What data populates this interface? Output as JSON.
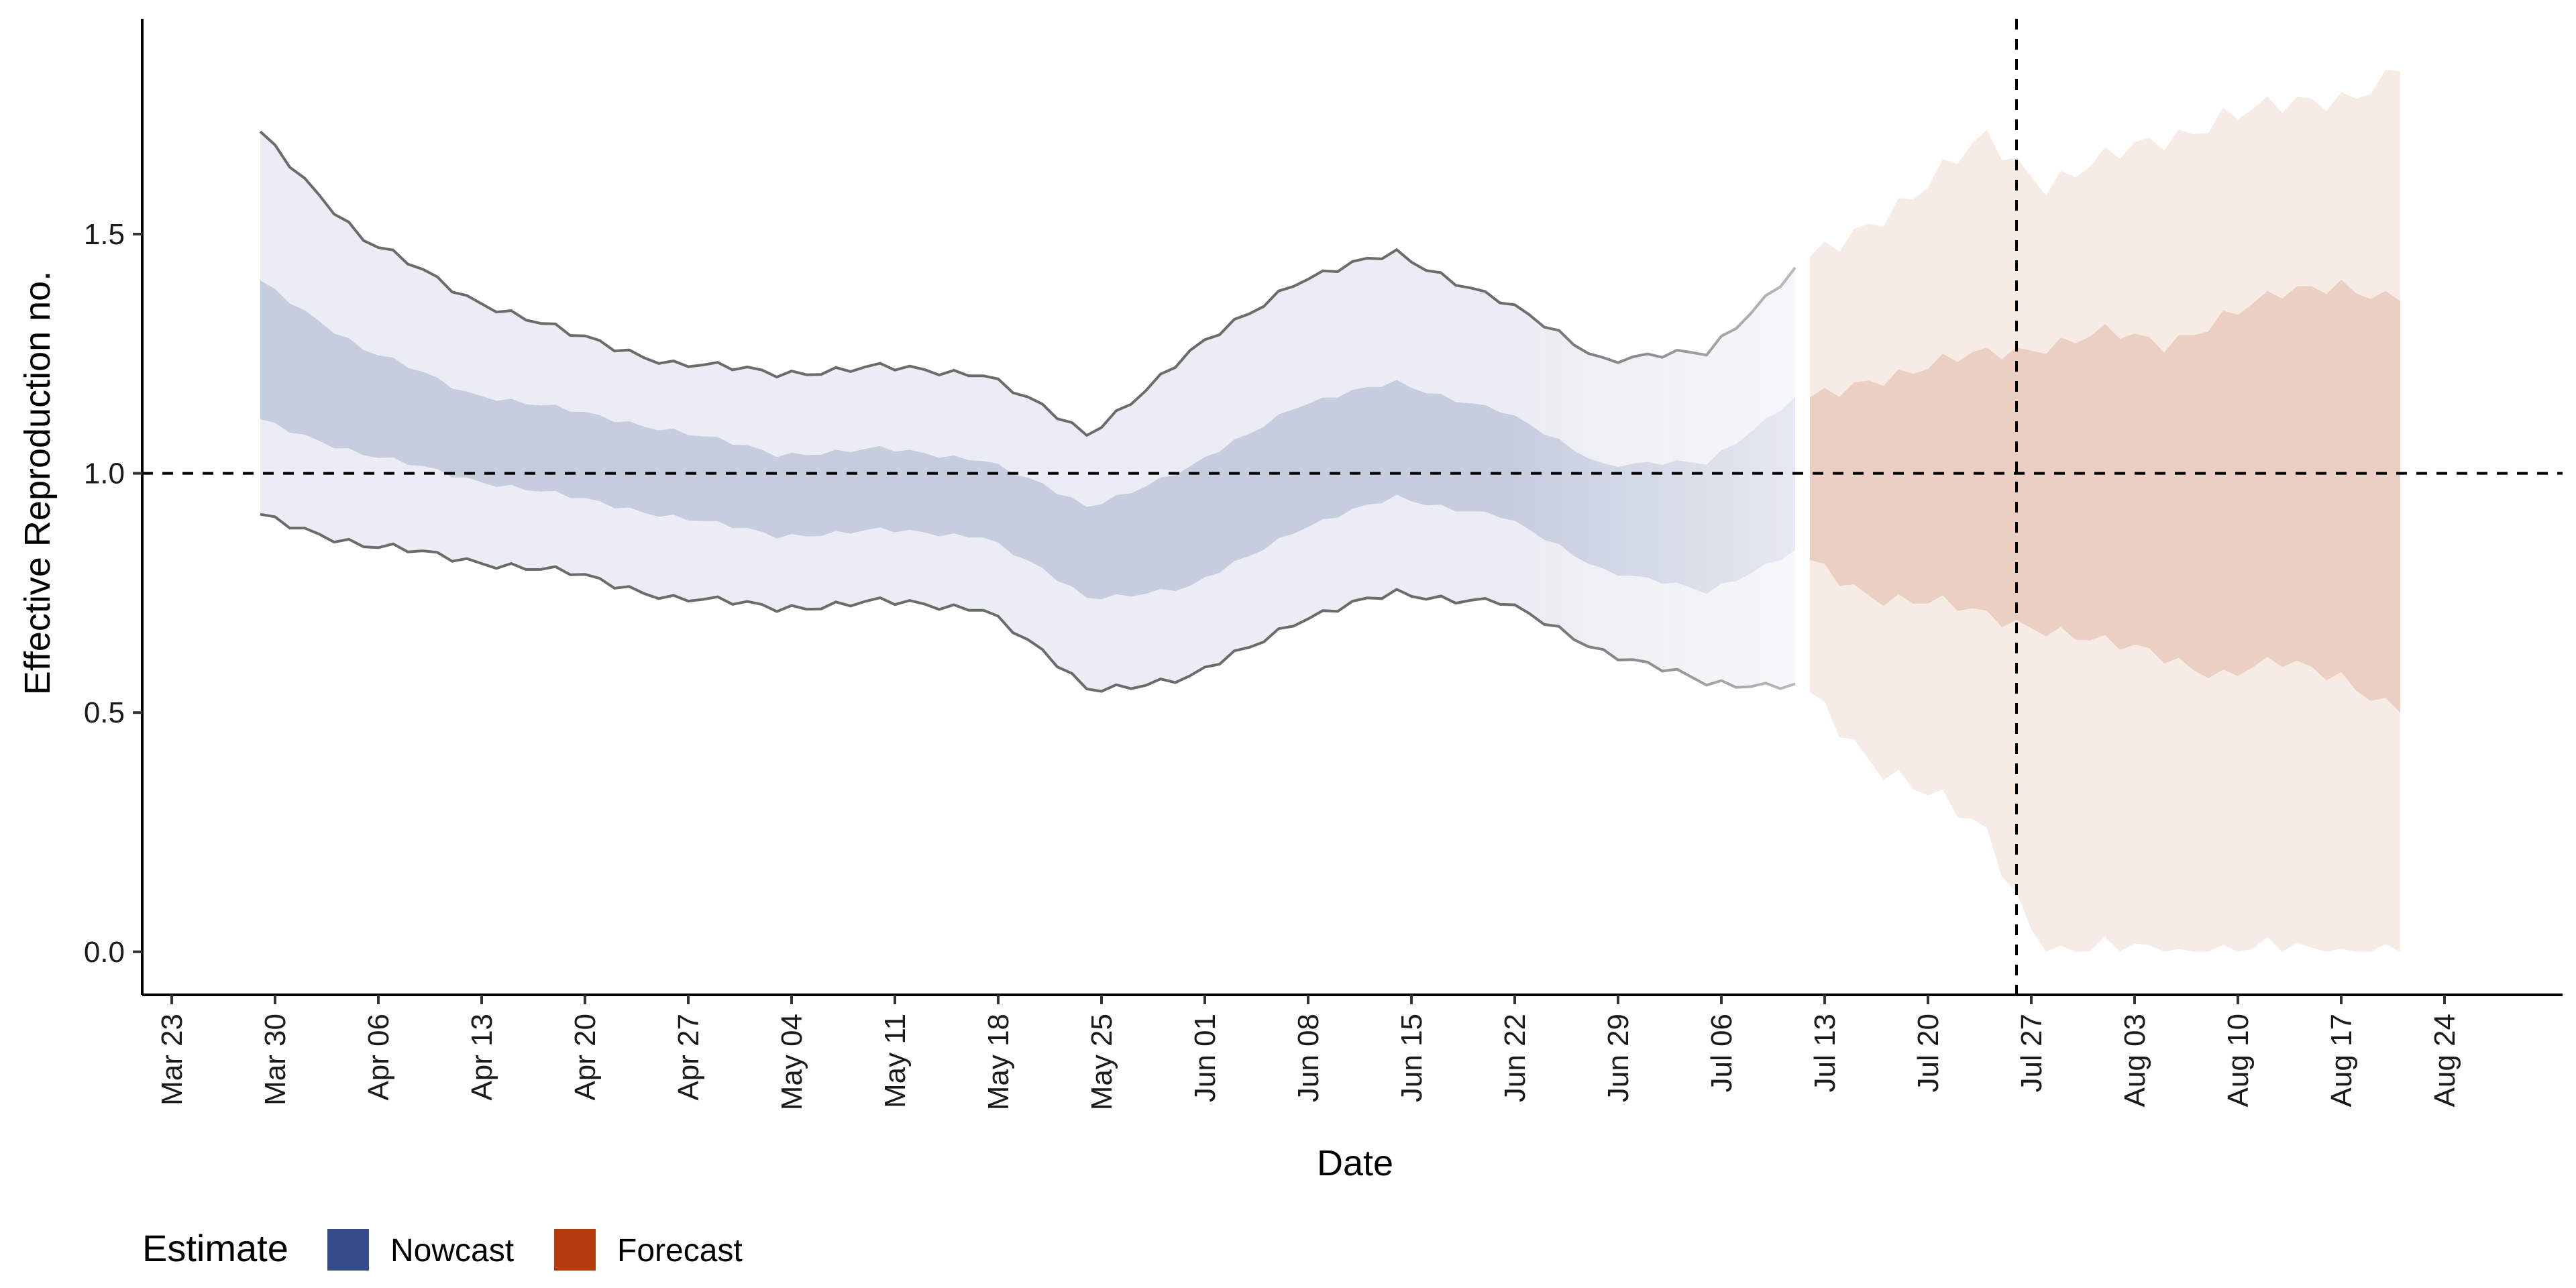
{
  "chart_data": {
    "type": "area",
    "xlabel": "Date",
    "ylabel": "Effective Reproduction no.",
    "x_axis": {
      "type": "date",
      "range": [
        "2020-03-21",
        "2020-09-01"
      ],
      "ticks": [
        "2020-03-23",
        "2020-03-30",
        "2020-04-06",
        "2020-04-13",
        "2020-04-20",
        "2020-04-27",
        "2020-05-04",
        "2020-05-11",
        "2020-05-18",
        "2020-05-25",
        "2020-06-01",
        "2020-06-08",
        "2020-06-15",
        "2020-06-22",
        "2020-06-29",
        "2020-07-06",
        "2020-07-13",
        "2020-07-20",
        "2020-07-27",
        "2020-08-03",
        "2020-08-10",
        "2020-08-17",
        "2020-08-24"
      ],
      "tick_labels": [
        "Mar 23",
        "Mar 30",
        "Apr 06",
        "Apr 13",
        "Apr 20",
        "Apr 27",
        "May 04",
        "May 11",
        "May 18",
        "May 25",
        "Jun 01",
        "Jun 08",
        "Jun 15",
        "Jun 22",
        "Jun 29",
        "Jul 06",
        "Jul 13",
        "Jul 20",
        "Jul 27",
        "Aug 03",
        "Aug 10",
        "Aug 17",
        "Aug 24"
      ],
      "tick_label_rotation": "vertical"
    },
    "y_axis": {
      "range": [
        -0.09,
        1.95
      ],
      "ticks": [
        0.0,
        0.5,
        1.0,
        1.5
      ],
      "tick_labels": [
        "0.0",
        "0.5",
        "1.0",
        "1.5"
      ]
    },
    "grid": false,
    "reference_lines": [
      {
        "orientation": "horizontal",
        "y": 1.0,
        "style": "dashed"
      },
      {
        "orientation": "vertical",
        "x": "2020-07-26",
        "style": "dashed"
      }
    ],
    "legend": {
      "title": "Estimate",
      "position": "bottom-left",
      "entries": [
        {
          "label": "Nowcast",
          "color": "#344c8a"
        },
        {
          "label": "Forecast",
          "color": "#b53c0d"
        }
      ]
    },
    "series": [
      {
        "name": "Nowcast",
        "color": "#344c8a",
        "x": [
          "2020-03-29",
          "2020-04-05",
          "2020-04-12",
          "2020-04-19",
          "2020-04-26",
          "2020-05-03",
          "2020-05-10",
          "2020-05-17",
          "2020-05-24",
          "2020-05-31",
          "2020-06-07",
          "2020-06-14",
          "2020-06-21",
          "2020-06-28",
          "2020-07-05",
          "2020-07-11"
        ],
        "upper_90": [
          1.71,
          1.49,
          1.37,
          1.29,
          1.23,
          1.21,
          1.22,
          1.21,
          1.08,
          1.25,
          1.4,
          1.46,
          1.36,
          1.24,
          1.25,
          1.43
        ],
        "upper_50": [
          1.4,
          1.26,
          1.17,
          1.13,
          1.09,
          1.04,
          1.05,
          1.03,
          0.93,
          1.01,
          1.14,
          1.19,
          1.13,
          1.02,
          1.02,
          1.16
        ],
        "lower_50": [
          1.11,
          1.04,
          0.99,
          0.95,
          0.91,
          0.87,
          0.88,
          0.87,
          0.74,
          0.76,
          0.88,
          0.95,
          0.91,
          0.8,
          0.75,
          0.84
        ],
        "lower_90": [
          0.91,
          0.85,
          0.82,
          0.79,
          0.74,
          0.72,
          0.73,
          0.72,
          0.55,
          0.57,
          0.69,
          0.75,
          0.73,
          0.63,
          0.56,
          0.56
        ]
      },
      {
        "name": "Forecast",
        "color": "#b53c0d",
        "x": [
          "2020-07-12",
          "2020-07-16",
          "2020-07-20",
          "2020-07-24",
          "2020-07-28",
          "2020-08-01",
          "2020-08-05",
          "2020-08-09",
          "2020-08-13",
          "2020-08-17",
          "2020-08-21"
        ],
        "upper_90": [
          1.44,
          1.53,
          1.6,
          1.7,
          1.61,
          1.65,
          1.7,
          1.75,
          1.76,
          1.79,
          1.84
        ],
        "upper_50": [
          1.15,
          1.2,
          1.22,
          1.25,
          1.27,
          1.29,
          1.27,
          1.33,
          1.37,
          1.4,
          1.36
        ],
        "lower_50": [
          0.81,
          0.75,
          0.73,
          0.7,
          0.68,
          0.64,
          0.62,
          0.58,
          0.6,
          0.58,
          0.5
        ],
        "lower_90": [
          0.53,
          0.41,
          0.33,
          0.24,
          0.0,
          0.0,
          0.0,
          0.0,
          0.0,
          0.0,
          0.0
        ]
      }
    ]
  }
}
